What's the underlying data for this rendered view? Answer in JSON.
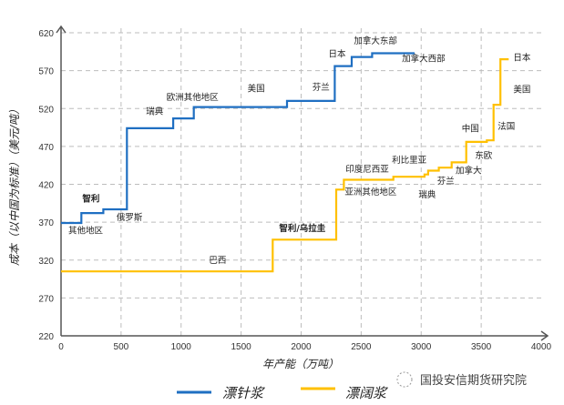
{
  "chart_data": {
    "type": "line",
    "step": true,
    "xlabel": "年产能（万吨）",
    "ylabel": "成本（以中国为标准）（美元/吨）",
    "xlim": [
      0,
      4000
    ],
    "ylim": [
      220,
      620
    ],
    "xticks": [
      0,
      500,
      1000,
      1500,
      2000,
      2500,
      3000,
      3500,
      4000
    ],
    "yticks": [
      220,
      270,
      320,
      370,
      420,
      470,
      520,
      570,
      620
    ],
    "grid": true,
    "legend": "bottom",
    "series": [
      {
        "name": "漂针浆",
        "color": "#1f6fc2",
        "points": [
          [
            0,
            369
          ],
          [
            169,
            369
          ],
          [
            169,
            382
          ],
          [
            352,
            382
          ],
          [
            352,
            387
          ],
          [
            549,
            387
          ],
          [
            549,
            494
          ],
          [
            934,
            494
          ],
          [
            934,
            507
          ],
          [
            1106,
            507
          ],
          [
            1106,
            522
          ],
          [
            1882,
            522
          ],
          [
            1882,
            530
          ],
          [
            2280,
            530
          ],
          [
            2280,
            576
          ],
          [
            2421,
            576
          ],
          [
            2421,
            588
          ],
          [
            2591,
            588
          ],
          [
            2591,
            593
          ],
          [
            2945,
            593
          ]
        ],
        "annotations": [
          {
            "text": "其他地区",
            "x": 205,
            "y": 359,
            "bold": false
          },
          {
            "text": "智利",
            "x": 250,
            "y": 401,
            "bold": true
          },
          {
            "text": "俄罗斯",
            "x": 570,
            "y": 376,
            "bold": false
          },
          {
            "text": "瑞典",
            "x": 780,
            "y": 516,
            "bold": false
          },
          {
            "text": "欧洲其他地区",
            "x": 1095,
            "y": 535,
            "bold": false
          },
          {
            "text": "美国",
            "x": 1625,
            "y": 546,
            "bold": false
          },
          {
            "text": "芬兰",
            "x": 2165,
            "y": 548,
            "bold": false
          },
          {
            "text": "日本",
            "x": 2300,
            "y": 592,
            "bold": false
          },
          {
            "text": "加拿大东部",
            "x": 2620,
            "y": 609,
            "bold": false
          },
          {
            "text": "加拿大西部",
            "x": 3020,
            "y": 586,
            "bold": false
          }
        ]
      },
      {
        "name": "漂阔浆",
        "color": "#ffc000",
        "points": [
          [
            0,
            305
          ],
          [
            1763,
            305
          ],
          [
            1763,
            347
          ],
          [
            2292,
            347
          ],
          [
            2292,
            413
          ],
          [
            2356,
            413
          ],
          [
            2356,
            426
          ],
          [
            2768,
            426
          ],
          [
            2768,
            430
          ],
          [
            3028,
            430
          ],
          [
            3028,
            433
          ],
          [
            3058,
            433
          ],
          [
            3058,
            438
          ],
          [
            3147,
            438
          ],
          [
            3147,
            442
          ],
          [
            3254,
            442
          ],
          [
            3254,
            449
          ],
          [
            3375,
            449
          ],
          [
            3375,
            476
          ],
          [
            3547,
            476
          ],
          [
            3547,
            478
          ],
          [
            3603,
            478
          ],
          [
            3603,
            525
          ],
          [
            3660,
            525
          ],
          [
            3660,
            585
          ],
          [
            3729,
            585
          ]
        ],
        "annotations": [
          {
            "text": "巴西",
            "x": 1305,
            "y": 320,
            "bold": false
          },
          {
            "text": "智利/乌拉圭",
            "x": 2010,
            "y": 362,
            "bold": true
          },
          {
            "text": "印度尼西亚",
            "x": 2550,
            "y": 440,
            "bold": false
          },
          {
            "text": "利比里亚",
            "x": 2900,
            "y": 452,
            "bold": false
          },
          {
            "text": "亚洲其他地区",
            "x": 2580,
            "y": 410,
            "bold": false
          },
          {
            "text": "瑞典",
            "x": 3050,
            "y": 406,
            "bold": false
          },
          {
            "text": "芬兰",
            "x": 3205,
            "y": 424,
            "bold": false
          },
          {
            "text": "加拿大",
            "x": 3395,
            "y": 438,
            "bold": false
          },
          {
            "text": "东欧",
            "x": 3520,
            "y": 458,
            "bold": false
          },
          {
            "text": "中国",
            "x": 3410,
            "y": 493,
            "bold": false
          },
          {
            "text": "法国",
            "x": 3710,
            "y": 496,
            "bold": false
          },
          {
            "text": "美国",
            "x": 3840,
            "y": 545,
            "bold": false
          },
          {
            "text": "日本",
            "x": 3840,
            "y": 587,
            "bold": false
          }
        ]
      }
    ]
  },
  "watermark": "国投安信期货研究院"
}
